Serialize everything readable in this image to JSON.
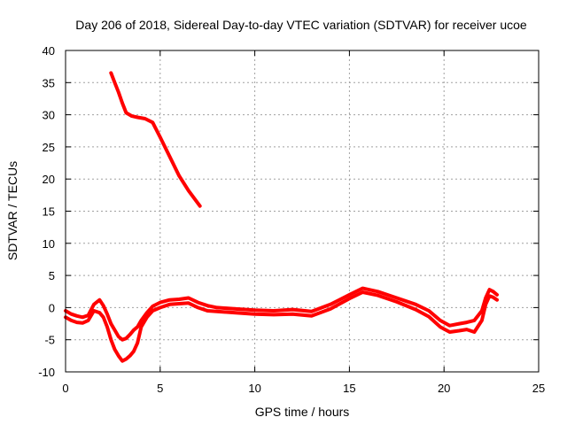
{
  "chart_data": {
    "type": "line",
    "title": "Day 206 of 2018, Sidereal Day-to-day VTEC variation (SDTVAR) for receiver ucoe",
    "xlabel": "GPS time / hours",
    "ylabel": "SDTVAR / TECUs",
    "xlim": [
      0,
      25
    ],
    "ylim": [
      -10,
      40
    ],
    "xticks": [
      0,
      5,
      10,
      15,
      20,
      25
    ],
    "yticks": [
      -10,
      -5,
      0,
      5,
      10,
      15,
      20,
      25,
      30,
      35,
      40
    ],
    "xtick_labels": [
      "0",
      "5",
      "10",
      "15",
      "20",
      "25"
    ],
    "ytick_labels": [
      "-10",
      "-5",
      "0",
      "5",
      "10",
      "15",
      "20",
      "25",
      "30",
      "35",
      "40"
    ],
    "grid": true,
    "legend": "none",
    "color": "#ff0000",
    "series": [
      {
        "name": "segment-1",
        "x": [
          2.4,
          2.6,
          2.8,
          3.0,
          3.2,
          3.5,
          3.8,
          4.2,
          4.6,
          5.0,
          5.5,
          6.0,
          6.5,
          7.1
        ],
        "y": [
          36.5,
          35.0,
          33.5,
          31.8,
          30.3,
          29.8,
          29.6,
          29.4,
          28.8,
          26.5,
          23.5,
          20.5,
          18.2,
          15.8
        ]
      },
      {
        "name": "segment-2-upper",
        "x": [
          0.0,
          0.3,
          0.6,
          0.9,
          1.2,
          1.5,
          1.8,
          2.0,
          2.2,
          2.4,
          2.6,
          2.8,
          3.0,
          3.2,
          3.4,
          3.6,
          3.8,
          4.0,
          4.3,
          4.6,
          5.0,
          5.5,
          6.0,
          6.5,
          7.0,
          7.5,
          8.0,
          9.0,
          10.0,
          11.0,
          12.0,
          13.0,
          14.0,
          15.0,
          15.7,
          16.5,
          17.5,
          18.5,
          19.2,
          19.8,
          20.3,
          20.8,
          21.2,
          21.6,
          22.0,
          22.2,
          22.4,
          22.6,
          22.8
        ],
        "y": [
          -0.5,
          -1.0,
          -1.3,
          -1.5,
          -1.2,
          0.5,
          1.2,
          0.3,
          -1.0,
          -2.5,
          -3.5,
          -4.5,
          -5.0,
          -4.8,
          -4.2,
          -3.5,
          -3.0,
          -2.0,
          -0.8,
          0.2,
          0.8,
          1.2,
          1.3,
          1.5,
          0.8,
          0.3,
          0.0,
          -0.2,
          -0.4,
          -0.5,
          -0.3,
          -0.6,
          0.5,
          2.0,
          3.0,
          2.5,
          1.5,
          0.5,
          -0.5,
          -2.0,
          -2.8,
          -2.5,
          -2.3,
          -2.0,
          -0.5,
          1.5,
          2.8,
          2.5,
          2.0
        ]
      },
      {
        "name": "segment-2-lower",
        "x": [
          0.0,
          0.3,
          0.6,
          0.9,
          1.2,
          1.5,
          1.8,
          2.0,
          2.2,
          2.4,
          2.6,
          2.8,
          3.0,
          3.2,
          3.4,
          3.6,
          3.8,
          4.0,
          4.3,
          4.6,
          5.0,
          5.5,
          6.0,
          6.5,
          7.0,
          7.5,
          8.0,
          9.0,
          10.0,
          11.0,
          12.0,
          13.0,
          14.0,
          15.0,
          15.7,
          16.5,
          17.5,
          18.5,
          19.2,
          19.8,
          20.3,
          20.8,
          21.2,
          21.6,
          22.0,
          22.2,
          22.4,
          22.6,
          22.8
        ],
        "y": [
          -1.5,
          -2.0,
          -2.3,
          -2.4,
          -2.0,
          -0.5,
          -0.8,
          -1.5,
          -3.0,
          -5.0,
          -6.5,
          -7.5,
          -8.3,
          -8.0,
          -7.5,
          -6.8,
          -5.5,
          -3.0,
          -1.5,
          -0.5,
          0.0,
          0.5,
          0.6,
          0.7,
          0.0,
          -0.5,
          -0.6,
          -0.8,
          -1.0,
          -1.1,
          -1.0,
          -1.3,
          -0.2,
          1.4,
          2.4,
          1.9,
          0.9,
          -0.3,
          -1.4,
          -3.0,
          -3.8,
          -3.6,
          -3.4,
          -3.8,
          -2.0,
          0.5,
          1.8,
          1.6,
          1.2
        ]
      }
    ]
  }
}
